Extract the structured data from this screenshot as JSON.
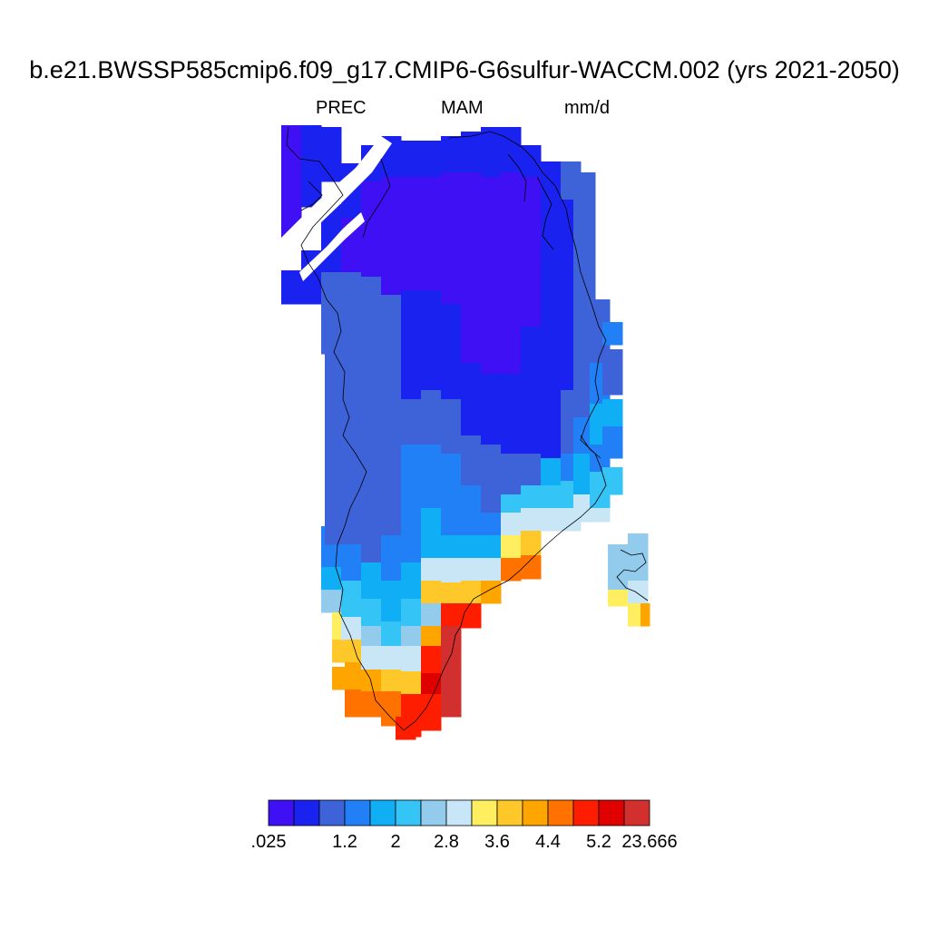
{
  "title": "b.e21.BWSSP585cmip6.f09_g17.CMIP6-G6sulfur-WACCM.002 (yrs 2021-2050)",
  "subtitle": {
    "variable": "PREC",
    "season": "MAM",
    "units": "mm/d"
  },
  "colorbar": {
    "colors": [
      "#4010f5",
      "#1a22f0",
      "#3e63d8",
      "#2180f5",
      "#10aef5",
      "#34c4f5",
      "#92cbec",
      "#c9e6f6",
      "#ffef60",
      "#ffc82a",
      "#ffa500",
      "#ff7200",
      "#ff1d00",
      "#df0000",
      "#d22f2f"
    ],
    "labels": [
      ".025",
      "1.2",
      "2",
      "2.8",
      "3.6",
      "4.4",
      "5.2",
      "23.666"
    ]
  }
}
